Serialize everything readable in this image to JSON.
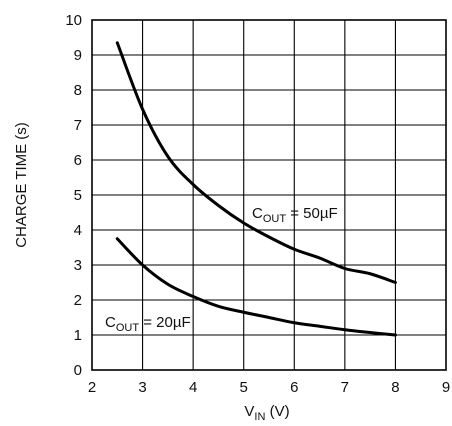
{
  "chart_data": {
    "type": "line",
    "xlabel": {
      "main": "V",
      "sub": "IN",
      "rest": " (V)"
    },
    "ylabel": "CHARGE TIME (s)",
    "xlim": [
      2,
      9
    ],
    "ylim": [
      0,
      10
    ],
    "xticks": [
      "2",
      "3",
      "4",
      "5",
      "6",
      "7",
      "8",
      "9"
    ],
    "yticks": [
      "0",
      "1",
      "2",
      "3",
      "4",
      "5",
      "6",
      "7",
      "8",
      "9",
      "10"
    ],
    "grid": true,
    "line_color": "#000000",
    "series": [
      {
        "label": {
          "main": "C",
          "sub": "OUT",
          "rest": " = 50µF"
        },
        "x": [
          2.5,
          3.0,
          3.5,
          4.0,
          4.5,
          5.0,
          5.5,
          6.0,
          6.5,
          7.0,
          7.5,
          8.0
        ],
        "y": [
          9.35,
          7.45,
          6.1,
          5.3,
          4.7,
          4.2,
          3.8,
          3.45,
          3.2,
          2.9,
          2.75,
          2.5
        ]
      },
      {
        "label": {
          "main": "C",
          "sub": "OUT",
          "rest": " = 20µF"
        },
        "x": [
          2.5,
          3.0,
          3.5,
          4.0,
          4.5,
          5.0,
          5.5,
          6.0,
          6.5,
          7.0,
          7.5,
          8.0
        ],
        "y": [
          3.75,
          3.0,
          2.45,
          2.1,
          1.82,
          1.65,
          1.5,
          1.35,
          1.25,
          1.15,
          1.07,
          1.0
        ]
      }
    ]
  }
}
